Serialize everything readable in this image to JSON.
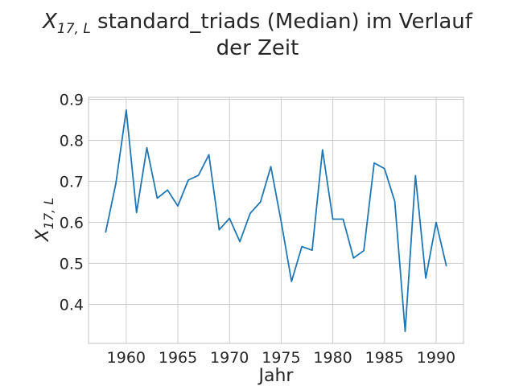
{
  "chart_data": {
    "type": "line",
    "title_symbol": "X",
    "title_subscript": "17, L",
    "title_rest": " standard_triads (Median) im Verlauf",
    "title_line2": "der Zeit",
    "xlabel": "Jahr",
    "ylabel_symbol": "X",
    "ylabel_subscript": "17, L",
    "xlim": [
      1956.35,
      1992.65
    ],
    "ylim": [
      0.305,
      0.905
    ],
    "xticks": [
      1960,
      1965,
      1970,
      1975,
      1980,
      1985,
      1990
    ],
    "yticks": [
      0.4,
      0.5,
      0.6,
      0.7,
      0.8,
      0.9
    ],
    "ytick_labels": [
      "0.4",
      "0.5",
      "0.6",
      "0.7",
      "0.8",
      "0.9"
    ],
    "grid": true,
    "line_color": "#1f77b4",
    "series": [
      {
        "x": [
          1958,
          1959,
          1960,
          1961,
          1962,
          1963,
          1964,
          1965,
          1966,
          1967,
          1968,
          1969,
          1970,
          1971,
          1972,
          1973,
          1974,
          1975,
          1976,
          1977,
          1978,
          1979,
          1980,
          1981,
          1982,
          1983,
          1984,
          1985,
          1986,
          1987,
          1988,
          1989,
          1990,
          1991
        ],
        "values": [
          0.575,
          0.695,
          0.874,
          0.624,
          0.782,
          0.659,
          0.679,
          0.64,
          0.703,
          0.715,
          0.765,
          0.582,
          0.61,
          0.553,
          0.622,
          0.65,
          0.736,
          0.602,
          0.456,
          0.541,
          0.532,
          0.777,
          0.608,
          0.608,
          0.513,
          0.531,
          0.745,
          0.731,
          0.651,
          0.334,
          0.714,
          0.464,
          0.6,
          0.493
        ]
      }
    ]
  }
}
